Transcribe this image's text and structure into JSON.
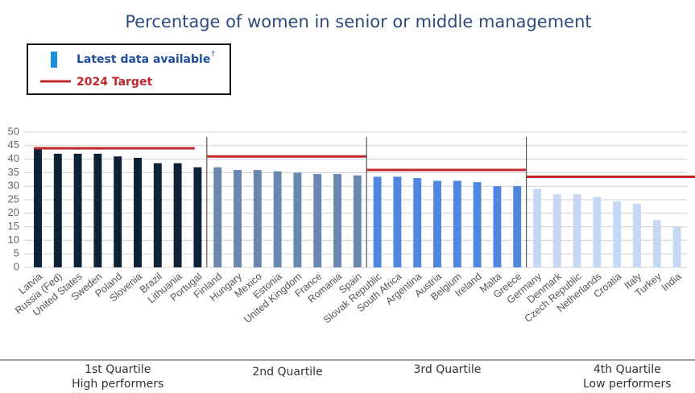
{
  "chart_data": {
    "type": "bar",
    "title": "Percentage of women in senior or middle management",
    "legend": {
      "bar": "Latest data available",
      "bar_note": "†",
      "bar_color": "#1a8fe0",
      "line": "2024 Target",
      "line_color": "#c0282c"
    },
    "ylim": [
      0,
      50
    ],
    "yticks": [
      0,
      5,
      10,
      15,
      20,
      25,
      30,
      35,
      40,
      45,
      50
    ],
    "grid": true,
    "groups": [
      {
        "name": "1st Quartile",
        "subtitle": "High performers",
        "color": "#0d2236",
        "target": 44,
        "categories": [
          "Latvia",
          "Russia (Fed)",
          "United States",
          "Sweden",
          "Poland",
          "Slovenia",
          "Brazil",
          "Lithuania",
          "Portugal"
        ],
        "values": [
          44,
          42,
          42,
          42,
          41,
          40.5,
          38.5,
          38.5,
          37
        ]
      },
      {
        "name": "2nd Quartile",
        "color": "#6a87ad",
        "target": 41,
        "categories": [
          "Finland",
          "Hungary",
          "Mexico",
          "Estonia",
          "United Kingdom",
          "France",
          "Romania",
          "Spain"
        ],
        "values": [
          37,
          36,
          36,
          35.5,
          35,
          34.5,
          34.5,
          34
        ]
      },
      {
        "name": "3rd Quartile",
        "color": "#4f87e0",
        "target": 36,
        "categories": [
          "Slovak Republic",
          "South Africa",
          "Argentina",
          "Austria",
          "Belgium",
          "Ireland",
          "Malta",
          "Greece"
        ],
        "values": [
          33.5,
          33.5,
          33,
          32,
          32,
          31.5,
          30,
          30
        ]
      },
      {
        "name": "4th Quartile",
        "subtitle": "Low performers",
        "color": "#c6d8f3",
        "target": 33.5,
        "categories": [
          "Germany",
          "Denmark",
          "Czech Republic",
          "Netherlands",
          "Croatia",
          "Italy",
          "Turkey",
          "India"
        ],
        "values": [
          29,
          27,
          27,
          26,
          24.5,
          23.5,
          17.5,
          15
        ]
      }
    ]
  }
}
